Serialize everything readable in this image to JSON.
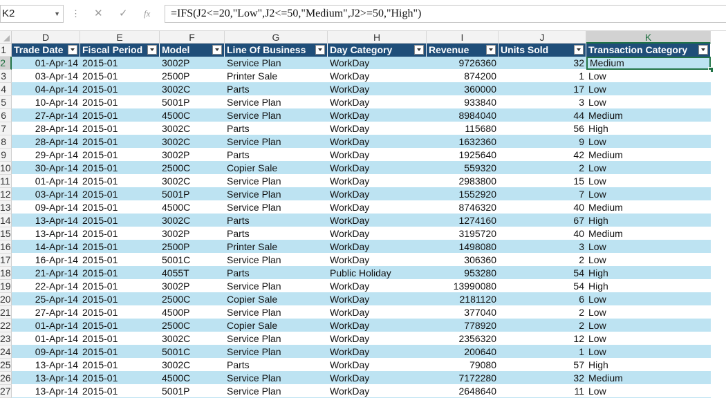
{
  "formula_bar": {
    "name_box": "K2",
    "cancel_icon": "✕",
    "enter_icon": "✓",
    "fx_icon": "fx",
    "formula": "=IFS(J2<=20,\"Low\",J2<=50,\"Medium\",J2>=50,\"High\")"
  },
  "grid": {
    "row_header_partial": "1",
    "columns": [
      {
        "letter": "D",
        "header": "Trade Date"
      },
      {
        "letter": "E",
        "header": "Fiscal Period"
      },
      {
        "letter": "F",
        "header": "Model"
      },
      {
        "letter": "G",
        "header": "Line Of Business"
      },
      {
        "letter": "H",
        "header": "Day Category"
      },
      {
        "letter": "I",
        "header": "Revenue"
      },
      {
        "letter": "J",
        "header": "Units Sold"
      },
      {
        "letter": "K",
        "header": "Transaction Category"
      }
    ],
    "selected_column": "K",
    "selected_row": "2",
    "rows": [
      {
        "num": "2",
        "cells": [
          "01-Apr-14",
          "2015-01",
          "3002P",
          "Service Plan",
          "WorkDay",
          "9726360",
          "32",
          "Medium"
        ]
      },
      {
        "num": "3",
        "cells": [
          "03-Apr-14",
          "2015-01",
          "2500P",
          "Printer Sale",
          "WorkDay",
          "874200",
          "1",
          "Low"
        ]
      },
      {
        "num": "4",
        "cells": [
          "04-Apr-14",
          "2015-01",
          "3002C",
          "Parts",
          "WorkDay",
          "360000",
          "17",
          "Low"
        ]
      },
      {
        "num": "5",
        "cells": [
          "10-Apr-14",
          "2015-01",
          "5001P",
          "Service Plan",
          "WorkDay",
          "933840",
          "3",
          "Low"
        ]
      },
      {
        "num": "6",
        "cells": [
          "27-Apr-14",
          "2015-01",
          "4500C",
          "Service Plan",
          "WorkDay",
          "8984040",
          "44",
          "Medium"
        ]
      },
      {
        "num": "7",
        "cells": [
          "28-Apr-14",
          "2015-01",
          "3002C",
          "Parts",
          "WorkDay",
          "115680",
          "56",
          "High"
        ]
      },
      {
        "num": "8",
        "cells": [
          "28-Apr-14",
          "2015-01",
          "3002C",
          "Service Plan",
          "WorkDay",
          "1632360",
          "9",
          "Low"
        ]
      },
      {
        "num": "9",
        "cells": [
          "29-Apr-14",
          "2015-01",
          "3002P",
          "Parts",
          "WorkDay",
          "1925640",
          "42",
          "Medium"
        ]
      },
      {
        "num": "10",
        "cells": [
          "30-Apr-14",
          "2015-01",
          "2500C",
          "Copier Sale",
          "WorkDay",
          "559320",
          "2",
          "Low"
        ]
      },
      {
        "num": "11",
        "cells": [
          "01-Apr-14",
          "2015-01",
          "3002C",
          "Service Plan",
          "WorkDay",
          "2983800",
          "15",
          "Low"
        ]
      },
      {
        "num": "12",
        "cells": [
          "03-Apr-14",
          "2015-01",
          "5001P",
          "Service Plan",
          "WorkDay",
          "1552920",
          "7",
          "Low"
        ]
      },
      {
        "num": "13",
        "cells": [
          "09-Apr-14",
          "2015-01",
          "4500C",
          "Service Plan",
          "WorkDay",
          "8746320",
          "40",
          "Medium"
        ]
      },
      {
        "num": "14",
        "cells": [
          "13-Apr-14",
          "2015-01",
          "3002C",
          "Parts",
          "WorkDay",
          "1274160",
          "67",
          "High"
        ]
      },
      {
        "num": "15",
        "cells": [
          "13-Apr-14",
          "2015-01",
          "3002P",
          "Parts",
          "WorkDay",
          "3195720",
          "40",
          "Medium"
        ]
      },
      {
        "num": "16",
        "cells": [
          "14-Apr-14",
          "2015-01",
          "2500P",
          "Printer Sale",
          "WorkDay",
          "1498080",
          "3",
          "Low"
        ]
      },
      {
        "num": "17",
        "cells": [
          "16-Apr-14",
          "2015-01",
          "5001C",
          "Service Plan",
          "WorkDay",
          "306360",
          "2",
          "Low"
        ]
      },
      {
        "num": "18",
        "cells": [
          "21-Apr-14",
          "2015-01",
          "4055T",
          "Parts",
          "Public Holiday",
          "953280",
          "54",
          "High"
        ]
      },
      {
        "num": "19",
        "cells": [
          "22-Apr-14",
          "2015-01",
          "3002P",
          "Service Plan",
          "WorkDay",
          "13990080",
          "54",
          "High"
        ]
      },
      {
        "num": "20",
        "cells": [
          "25-Apr-14",
          "2015-01",
          "2500C",
          "Copier Sale",
          "WorkDay",
          "2181120",
          "6",
          "Low"
        ]
      },
      {
        "num": "21",
        "cells": [
          "27-Apr-14",
          "2015-01",
          "4500P",
          "Service Plan",
          "WorkDay",
          "377040",
          "2",
          "Low"
        ]
      },
      {
        "num": "22",
        "cells": [
          "01-Apr-14",
          "2015-01",
          "2500C",
          "Copier Sale",
          "WorkDay",
          "778920",
          "2",
          "Low"
        ]
      },
      {
        "num": "23",
        "cells": [
          "01-Apr-14",
          "2015-01",
          "3002C",
          "Service Plan",
          "WorkDay",
          "2356320",
          "12",
          "Low"
        ]
      },
      {
        "num": "24",
        "cells": [
          "09-Apr-14",
          "2015-01",
          "5001C",
          "Service Plan",
          "WorkDay",
          "200640",
          "1",
          "Low"
        ]
      },
      {
        "num": "25",
        "cells": [
          "13-Apr-14",
          "2015-01",
          "3002C",
          "Parts",
          "WorkDay",
          "79080",
          "57",
          "High"
        ]
      },
      {
        "num": "26",
        "cells": [
          "13-Apr-14",
          "2015-01",
          "4500C",
          "Service Plan",
          "WorkDay",
          "7172280",
          "32",
          "Medium"
        ]
      },
      {
        "num": "27",
        "cells": [
          "13-Apr-14",
          "2015-01",
          "5001P",
          "Service Plan",
          "WorkDay",
          "2648640",
          "11",
          "Low"
        ]
      }
    ]
  }
}
